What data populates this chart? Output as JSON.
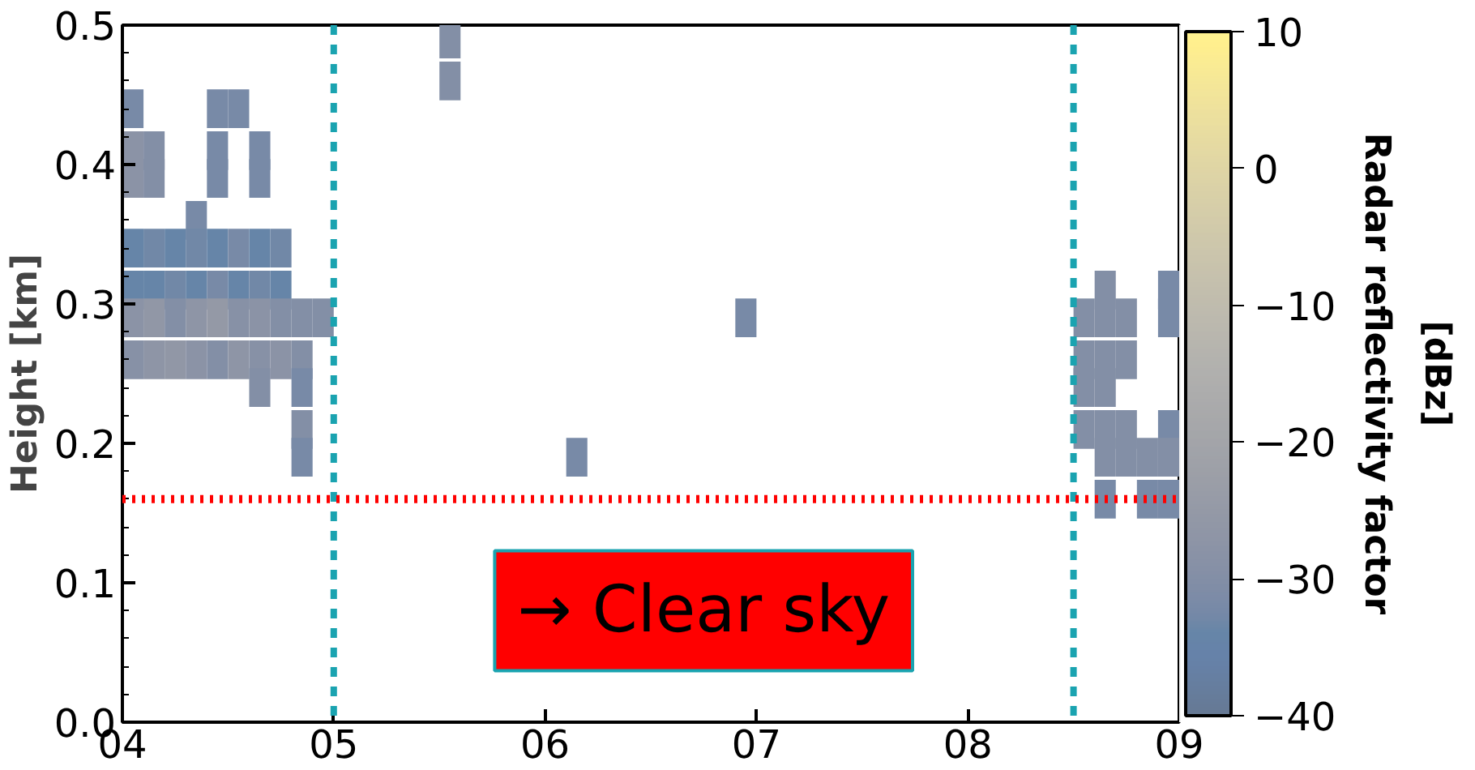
{
  "chart_data": {
    "type": "scatter",
    "marker": "square",
    "ylabel": "Height [km]",
    "clabel": "Radar reflectivity factor\n[dBz]",
    "annotations": [
      "→ Clear sky"
    ],
    "xlim": [
      4,
      9
    ],
    "xticks": [
      {
        "value": 4,
        "label": "04"
      },
      {
        "value": 5,
        "label": "05"
      },
      {
        "value": 6,
        "label": "06"
      },
      {
        "value": 7,
        "label": "07"
      },
      {
        "value": 8,
        "label": "08"
      },
      {
        "value": 9,
        "label": "09"
      }
    ],
    "ylim": [
      0,
      0.5
    ],
    "yticks": [
      {
        "value": 0,
        "label": "0.0"
      },
      0.1,
      0.2,
      0.3,
      0.4,
      0.5
    ],
    "clim": [
      -40,
      10
    ],
    "cticks": [
      {
        "value": -40,
        "label": "−40"
      },
      {
        "value": -30,
        "label": "−30"
      },
      {
        "value": -20,
        "label": "−20"
      },
      {
        "value": -10,
        "label": "−10"
      },
      0,
      10
    ],
    "ref_lines": [
      {
        "axis": "x",
        "value": 5.0,
        "color": "#1aa3b0",
        "line_style": "dashed"
      },
      {
        "axis": "x",
        "value": 8.5,
        "color": "#1aa3b0",
        "line_style": "dashed"
      },
      {
        "axis": "y",
        "value": 0.16,
        "color": "#ff0000",
        "line_style": "dotted"
      }
    ],
    "grid": false,
    "x": [
      5.55,
      5.55,
      4.05,
      4.45,
      4.55,
      4.05,
      4.15,
      4.45,
      4.65,
      4.05,
      4.15,
      4.45,
      4.65,
      4.35,
      4.05,
      4.15,
      4.25,
      4.35,
      4.45,
      4.55,
      4.65,
      4.75,
      4.05,
      4.15,
      4.25,
      4.35,
      4.45,
      4.55,
      4.65,
      4.75,
      8.65,
      8.95,
      4.05,
      4.15,
      4.25,
      4.35,
      4.45,
      4.55,
      4.65,
      4.75,
      4.85,
      4.95,
      6.95,
      8.55,
      8.65,
      8.75,
      8.95,
      4.05,
      4.15,
      4.25,
      4.35,
      4.45,
      4.55,
      4.65,
      4.75,
      4.85,
      8.55,
      8.65,
      8.75,
      4.65,
      4.85,
      8.55,
      8.65,
      4.85,
      8.55,
      8.65,
      8.75,
      8.95,
      4.85,
      6.15,
      8.65,
      8.75,
      8.85,
      8.95,
      8.65,
      8.85,
      8.95
    ],
    "values": [
      0.49,
      0.46,
      0.44,
      0.44,
      0.44,
      0.41,
      0.41,
      0.41,
      0.41,
      0.39,
      0.39,
      0.39,
      0.39,
      0.36,
      0.34,
      0.34,
      0.34,
      0.34,
      0.34,
      0.34,
      0.34,
      0.34,
      0.31,
      0.31,
      0.31,
      0.31,
      0.31,
      0.31,
      0.31,
      0.31,
      0.31,
      0.31,
      0.29,
      0.29,
      0.29,
      0.29,
      0.29,
      0.29,
      0.29,
      0.29,
      0.29,
      0.29,
      0.29,
      0.29,
      0.29,
      0.29,
      0.29,
      0.26,
      0.26,
      0.26,
      0.26,
      0.26,
      0.26,
      0.26,
      0.26,
      0.26,
      0.26,
      0.26,
      0.26,
      0.24,
      0.24,
      0.24,
      0.24,
      0.21,
      0.21,
      0.21,
      0.21,
      0.21,
      0.19,
      0.19,
      0.19,
      0.19,
      0.19,
      0.19,
      0.16,
      0.16,
      0.16
    ],
    "cvalues": [
      -30,
      -30,
      -32,
      -32,
      -32,
      -28,
      -30,
      -32,
      -32,
      -28,
      -30,
      -32,
      -32,
      -32,
      -34,
      -33,
      -34,
      -33,
      -34,
      -32,
      -34,
      -33,
      -34,
      -34,
      -33,
      -34,
      -32,
      -34,
      -33,
      -34,
      -30,
      -32,
      -28,
      -26,
      -30,
      -27,
      -25,
      -29,
      -28,
      -30,
      -30,
      -30,
      -32,
      -30,
      -30,
      -30,
      -32,
      -29,
      -27,
      -26,
      -28,
      -30,
      -27,
      -29,
      -28,
      -30,
      -30,
      -30,
      -30,
      -30,
      -32,
      -30,
      -30,
      -30,
      -30,
      -30,
      -30,
      -32,
      -32,
      -32,
      -30,
      -30,
      -30,
      -30,
      -32,
      -32,
      -32
    ]
  }
}
